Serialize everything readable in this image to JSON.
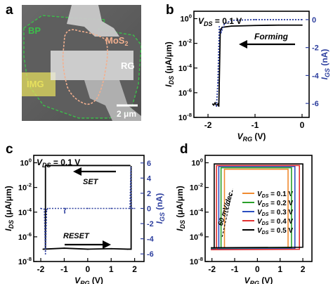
{
  "panels": {
    "a": {
      "label": "a",
      "annotations": [
        "BP",
        "MoS",
        "2",
        "RG",
        "IMG",
        "2 μm"
      ],
      "colors": {
        "bp": "#3bbf4a",
        "mos2": "#f3b08f",
        "rg": "#e6e6e6",
        "img": "#e7e05e"
      }
    },
    "b": {
      "label": "b"
    },
    "c": {
      "label": "c"
    },
    "d": {
      "label": "d"
    }
  },
  "chart_data": [
    {
      "panel": "b",
      "type": "line",
      "condition": "V_DS = 0.1 V",
      "annotations": [
        "Forming"
      ],
      "xlabel": "V_RG (V)",
      "ylabel_left": "I_DS (μA/μm)",
      "ylabel_right": "I_GS (nA)",
      "xlim": [
        -2.3,
        0.15
      ],
      "ylim_left_log10": [
        -8,
        0.6
      ],
      "ylim_right": [
        -7,
        0.6
      ],
      "x_ticks": [
        -2,
        -1,
        0
      ],
      "x_tick_labels": [
        "-2",
        "-1",
        "0"
      ],
      "y_left_tick_labels": [
        "10^0",
        "10^-2",
        "10^-4",
        "10^-6",
        "10^-8"
      ],
      "y_left_ticks_log10": [
        0,
        -2,
        -4,
        -6,
        -8
      ],
      "y_right_ticks": [
        0,
        -2,
        -4,
        -6
      ],
      "y_right_tick_labels": [
        "0",
        "-2",
        "-4",
        "-6"
      ],
      "series": [
        {
          "axis": "left",
          "style": "solid",
          "color": "#000000",
          "x": [
            0,
            -0.5,
            -1.0,
            -1.5,
            -1.7,
            -1.74,
            -1.77,
            -1.79,
            -1.82,
            -1.85,
            -1.88,
            -1.9
          ],
          "y": [
            0.3,
            0.3,
            0.28,
            0.25,
            0.2,
            0.1,
            8e-08,
            1.2e-07,
            9e-08,
            1.5e-07,
            1e-07,
            1.2e-07
          ]
        },
        {
          "axis": "right",
          "style": "dotted",
          "color": "#2c3e9e",
          "x": [
            0,
            -0.5,
            -1.0,
            -1.5,
            -1.65,
            -1.72,
            -1.76,
            -1.79,
            -1.82
          ],
          "y": [
            0,
            0,
            0,
            -0.05,
            -0.3,
            -0.9,
            -0.5,
            -4.5,
            -6.2
          ]
        }
      ]
    },
    {
      "panel": "c",
      "type": "line",
      "condition": "V_DS = 0.1 V",
      "annotations": [
        "SET",
        "RESET"
      ],
      "xlabel": "V_RG (V)",
      "ylabel_left": "I_DS (μA/μm)",
      "ylabel_right": "I_GS (nA)",
      "xlim": [
        -2.3,
        2.4
      ],
      "ylim_left_log10": [
        -8,
        0.6
      ],
      "ylim_right": [
        -7,
        7
      ],
      "x_ticks": [
        -2,
        -1,
        0,
        1,
        2
      ],
      "x_tick_labels": [
        "-2",
        "-1",
        "0",
        "1",
        "2"
      ],
      "y_left_tick_labels": [
        "10^0",
        "10^-2",
        "10^-4",
        "10^-6",
        "10^-8"
      ],
      "y_left_ticks_log10": [
        0,
        -2,
        -4,
        -6,
        -8
      ],
      "y_right_ticks": [
        6,
        4,
        2,
        0,
        -2,
        -4,
        -6
      ],
      "y_right_tick_labels": [
        "6",
        "4",
        "2",
        "0",
        "-2",
        "-4",
        "-6"
      ],
      "series": [
        {
          "axis": "left",
          "style": "solid",
          "color": "#000000",
          "name_from_annotation": "SET",
          "x": [
            1.8,
            1.0,
            0,
            -1.0,
            -1.7,
            -1.8,
            -1.8
          ],
          "y": [
            0.6,
            0.6,
            0.6,
            0.6,
            0.6,
            0.6,
            1.2e-07
          ]
        },
        {
          "axis": "left",
          "style": "solid",
          "color": "#000000",
          "name_from_annotation": "RESET",
          "x": [
            -1.9,
            -1.0,
            0,
            1.0,
            1.7,
            1.85,
            1.85
          ],
          "y": [
            1e-07,
            1.2e-07,
            1e-07,
            1.1e-07,
            1e-07,
            1e-07,
            0.5
          ]
        },
        {
          "axis": "right",
          "style": "dotted",
          "color": "#2c3e9e",
          "x": [
            -2.0,
            -1.85,
            -1.8,
            -1.75,
            -1.7,
            -1.0,
            -0.98,
            -0.95,
            0,
            1.0,
            1.8,
            1.84,
            1.86,
            2.0
          ],
          "y": [
            0,
            -0.1,
            -6,
            -0.2,
            0,
            0,
            -0.6,
            0,
            0,
            0,
            0,
            5.4,
            0,
            0
          ]
        }
      ]
    },
    {
      "panel": "d",
      "type": "line",
      "annotations": [
        "60 mV/dec"
      ],
      "xlabel": "V_RG (V)",
      "ylabel_left": "I_DS (μA/μm)",
      "xlim": [
        -2.3,
        2.4
      ],
      "ylim_left_log10": [
        -8,
        0.6
      ],
      "x_ticks": [
        -2,
        -1,
        0,
        1,
        2
      ],
      "x_tick_labels": [
        "-2",
        "-1",
        "0",
        "1",
        "2"
      ],
      "y_left_tick_labels": [
        "10^0",
        "10^-2",
        "10^-4",
        "10^-6",
        "10^-8"
      ],
      "y_left_ticks_log10": [
        0,
        -2,
        -4,
        -6,
        -8
      ],
      "legend_position": "center-right",
      "series": [
        {
          "name": "V_DS = 0.1 V",
          "color": "#f08a30",
          "set_x": -1.45,
          "reset_x": 1.35,
          "on": 0.3,
          "off": 1.2e-07
        },
        {
          "name": "V_DS = 0.2 V",
          "color": "#2aa02a",
          "set_x": -1.6,
          "reset_x": 1.5,
          "on": 0.4,
          "off": 1.1e-07
        },
        {
          "name": "V_DS = 0.3 V",
          "color": "#2b4fc0",
          "set_x": -1.7,
          "reset_x": 1.65,
          "on": 0.5,
          "off": 1e-07
        },
        {
          "name": "V_DS = 0.4 V",
          "color": "#e23030",
          "set_x": -1.8,
          "reset_x": 1.85,
          "on": 0.6,
          "off": 9e-08
        },
        {
          "name": "V_DS = 0.5 V",
          "color": "#000000",
          "set_x": -1.9,
          "reset_x": 2.0,
          "on": 0.8,
          "off": 1.3e-07
        }
      ]
    }
  ]
}
